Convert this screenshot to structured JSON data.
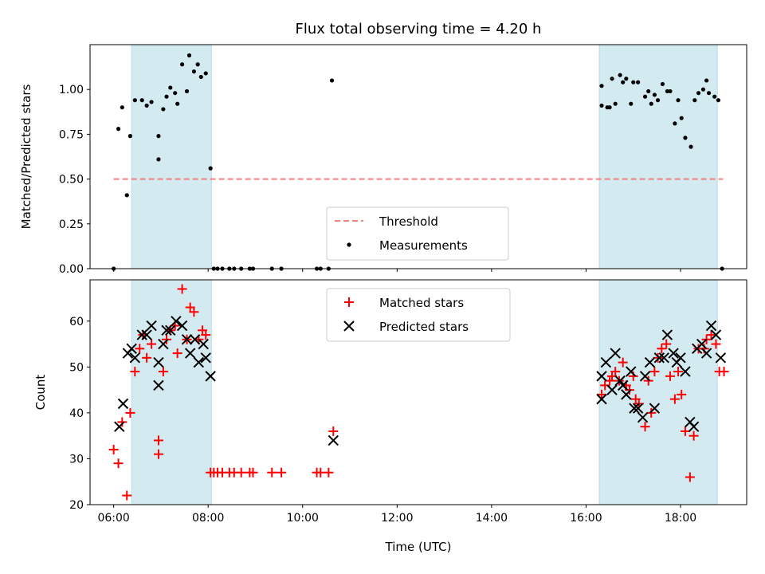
{
  "chart_data": [
    {
      "type": "scatter",
      "panel": "top",
      "title": "Flux total observing time = 4.20 h",
      "ylabel": "Matched/Predicted stars",
      "xlabel": "",
      "ylim": [
        0,
        1.25
      ],
      "yticks": [
        0.0,
        0.25,
        0.5,
        0.75,
        1.0
      ],
      "ytick_labels": [
        "0.00",
        "0.25",
        "0.50",
        "0.75",
        "1.00"
      ],
      "xlim": [
        5.5,
        19.4
      ],
      "shaded_spans": [
        [
          6.38,
          8.07
        ],
        [
          16.28,
          18.78
        ]
      ],
      "shade_color": "#d3eaf0",
      "threshold": {
        "name": "Threshold",
        "value": 0.5,
        "x_range": [
          6.0,
          18.9
        ],
        "color": "#f08080",
        "style": "dashed"
      },
      "legend": {
        "position": "lower center",
        "entries": [
          "Threshold",
          "Measurements"
        ]
      },
      "series": [
        {
          "name": "Measurements",
          "marker": "dot",
          "color": "#000000",
          "points": [
            [
              6.0,
              0.0
            ],
            [
              6.1,
              0.78
            ],
            [
              6.18,
              0.9
            ],
            [
              6.28,
              0.41
            ],
            [
              6.35,
              0.74
            ],
            [
              6.45,
              0.94
            ],
            [
              6.6,
              0.94
            ],
            [
              6.7,
              0.91
            ],
            [
              6.8,
              0.93
            ],
            [
              6.95,
              0.74
            ],
            [
              6.95,
              0.61
            ],
            [
              7.05,
              0.89
            ],
            [
              7.12,
              0.96
            ],
            [
              7.2,
              1.01
            ],
            [
              7.3,
              0.98
            ],
            [
              7.35,
              0.92
            ],
            [
              7.45,
              1.14
            ],
            [
              7.55,
              0.99
            ],
            [
              7.6,
              1.19
            ],
            [
              7.7,
              1.1
            ],
            [
              7.78,
              1.14
            ],
            [
              7.85,
              1.07
            ],
            [
              7.95,
              1.09
            ],
            [
              8.05,
              0.56
            ],
            [
              8.12,
              0.0
            ],
            [
              8.2,
              0.0
            ],
            [
              8.3,
              0.0
            ],
            [
              8.45,
              0.0
            ],
            [
              8.55,
              0.0
            ],
            [
              8.7,
              0.0
            ],
            [
              8.88,
              0.0
            ],
            [
              8.95,
              0.0
            ],
            [
              9.35,
              0.0
            ],
            [
              9.55,
              0.0
            ],
            [
              10.3,
              0.0
            ],
            [
              10.38,
              0.0
            ],
            [
              10.55,
              0.0
            ],
            [
              10.62,
              1.05
            ],
            [
              16.33,
              1.02
            ],
            [
              16.33,
              0.91
            ],
            [
              16.45,
              0.9
            ],
            [
              16.5,
              0.9
            ],
            [
              16.55,
              1.06
            ],
            [
              16.62,
              0.92
            ],
            [
              16.72,
              1.08
            ],
            [
              16.78,
              1.04
            ],
            [
              16.85,
              1.06
            ],
            [
              16.95,
              0.92
            ],
            [
              17.0,
              1.04
            ],
            [
              17.1,
              1.04
            ],
            [
              17.25,
              0.96
            ],
            [
              17.32,
              0.99
            ],
            [
              17.38,
              0.92
            ],
            [
              17.45,
              0.97
            ],
            [
              17.52,
              0.94
            ],
            [
              17.62,
              1.03
            ],
            [
              17.72,
              0.99
            ],
            [
              17.78,
              0.99
            ],
            [
              17.88,
              0.81
            ],
            [
              17.95,
              0.94
            ],
            [
              18.02,
              0.84
            ],
            [
              18.1,
              0.73
            ],
            [
              18.22,
              0.68
            ],
            [
              18.3,
              0.94
            ],
            [
              18.38,
              0.98
            ],
            [
              18.48,
              1.0
            ],
            [
              18.55,
              1.05
            ],
            [
              18.6,
              0.98
            ],
            [
              18.72,
              0.96
            ],
            [
              18.8,
              0.94
            ],
            [
              18.88,
              0.0
            ]
          ]
        }
      ]
    },
    {
      "type": "scatter",
      "panel": "bottom",
      "title": "",
      "xlabel": "Time (UTC)",
      "ylabel": "Count",
      "ylim": [
        20,
        69
      ],
      "yticks": [
        20,
        30,
        40,
        50,
        60
      ],
      "xlim": [
        5.5,
        19.4
      ],
      "xticks": [
        6,
        8,
        10,
        12,
        14,
        16,
        18
      ],
      "xtick_labels": [
        "06:00",
        "08:00",
        "10:00",
        "12:00",
        "14:00",
        "16:00",
        "18:00"
      ],
      "shaded_spans": [
        [
          6.38,
          8.07
        ],
        [
          16.28,
          18.78
        ]
      ],
      "shade_color": "#d3eaf0",
      "legend": {
        "position": "upper center",
        "entries": [
          "Matched stars",
          "Predicted stars"
        ]
      },
      "series": [
        {
          "name": "Matched stars",
          "marker": "plus",
          "color": "#ff0000",
          "points": [
            [
              6.0,
              32
            ],
            [
              6.1,
              29
            ],
            [
              6.18,
              38
            ],
            [
              6.28,
              22
            ],
            [
              6.35,
              40
            ],
            [
              6.45,
              49
            ],
            [
              6.55,
              54
            ],
            [
              6.62,
              57
            ],
            [
              6.7,
              52
            ],
            [
              6.8,
              55
            ],
            [
              6.95,
              34
            ],
            [
              6.95,
              31
            ],
            [
              7.05,
              49
            ],
            [
              7.12,
              56
            ],
            [
              7.2,
              58
            ],
            [
              7.3,
              59
            ],
            [
              7.35,
              53
            ],
            [
              7.45,
              67
            ],
            [
              7.55,
              56
            ],
            [
              7.62,
              63
            ],
            [
              7.7,
              62
            ],
            [
              7.8,
              56
            ],
            [
              7.88,
              58
            ],
            [
              7.95,
              57
            ],
            [
              8.05,
              27
            ],
            [
              8.12,
              27
            ],
            [
              8.2,
              27
            ],
            [
              8.3,
              27
            ],
            [
              8.45,
              27
            ],
            [
              8.55,
              27
            ],
            [
              8.7,
              27
            ],
            [
              8.88,
              27
            ],
            [
              8.95,
              27
            ],
            [
              9.35,
              27
            ],
            [
              9.55,
              27
            ],
            [
              10.3,
              27
            ],
            [
              10.38,
              27
            ],
            [
              10.55,
              27
            ],
            [
              10.65,
              36
            ],
            [
              16.33,
              44
            ],
            [
              16.4,
              46
            ],
            [
              16.5,
              47
            ],
            [
              16.55,
              48
            ],
            [
              16.62,
              49
            ],
            [
              16.7,
              47
            ],
            [
              16.78,
              51
            ],
            [
              16.85,
              46
            ],
            [
              16.92,
              45
            ],
            [
              17.0,
              48
            ],
            [
              17.05,
              43
            ],
            [
              17.12,
              42
            ],
            [
              17.25,
              37
            ],
            [
              17.32,
              47
            ],
            [
              17.38,
              40
            ],
            [
              17.45,
              49
            ],
            [
              17.52,
              52
            ],
            [
              17.6,
              54
            ],
            [
              17.7,
              55
            ],
            [
              17.78,
              48
            ],
            [
              17.88,
              43
            ],
            [
              17.95,
              49
            ],
            [
              18.02,
              44
            ],
            [
              18.1,
              36
            ],
            [
              18.2,
              26
            ],
            [
              18.28,
              35
            ],
            [
              18.38,
              54
            ],
            [
              18.5,
              54
            ],
            [
              18.55,
              56
            ],
            [
              18.65,
              57
            ],
            [
              18.75,
              55
            ],
            [
              18.82,
              49
            ],
            [
              18.92,
              49
            ]
          ]
        },
        {
          "name": "Predicted stars",
          "marker": "x",
          "color": "#000000",
          "points": [
            [
              6.12,
              37
            ],
            [
              6.2,
              42
            ],
            [
              6.3,
              53
            ],
            [
              6.38,
              54
            ],
            [
              6.45,
              52
            ],
            [
              6.6,
              57
            ],
            [
              6.7,
              57
            ],
            [
              6.8,
              59
            ],
            [
              6.95,
              51
            ],
            [
              6.95,
              46
            ],
            [
              7.05,
              55
            ],
            [
              7.12,
              58
            ],
            [
              7.2,
              58
            ],
            [
              7.32,
              60
            ],
            [
              7.45,
              59
            ],
            [
              7.55,
              56
            ],
            [
              7.62,
              53
            ],
            [
              7.72,
              56
            ],
            [
              7.8,
              51
            ],
            [
              7.9,
              55
            ],
            [
              7.95,
              52
            ],
            [
              8.05,
              48
            ],
            [
              10.65,
              34
            ],
            [
              16.33,
              48
            ],
            [
              16.33,
              43
            ],
            [
              16.42,
              51
            ],
            [
              16.55,
              45
            ],
            [
              16.62,
              53
            ],
            [
              16.72,
              47
            ],
            [
              16.78,
              46
            ],
            [
              16.85,
              44
            ],
            [
              16.95,
              49
            ],
            [
              17.02,
              41
            ],
            [
              17.1,
              41
            ],
            [
              17.2,
              39
            ],
            [
              17.25,
              48
            ],
            [
              17.35,
              51
            ],
            [
              17.45,
              41
            ],
            [
              17.55,
              52
            ],
            [
              17.65,
              52
            ],
            [
              17.72,
              57
            ],
            [
              17.85,
              53
            ],
            [
              17.92,
              51
            ],
            [
              18.0,
              52
            ],
            [
              18.1,
              49
            ],
            [
              18.2,
              38
            ],
            [
              18.28,
              37
            ],
            [
              18.35,
              54
            ],
            [
              18.45,
              55
            ],
            [
              18.55,
              53
            ],
            [
              18.65,
              59
            ],
            [
              18.75,
              57
            ],
            [
              18.85,
              52
            ]
          ]
        }
      ]
    }
  ]
}
